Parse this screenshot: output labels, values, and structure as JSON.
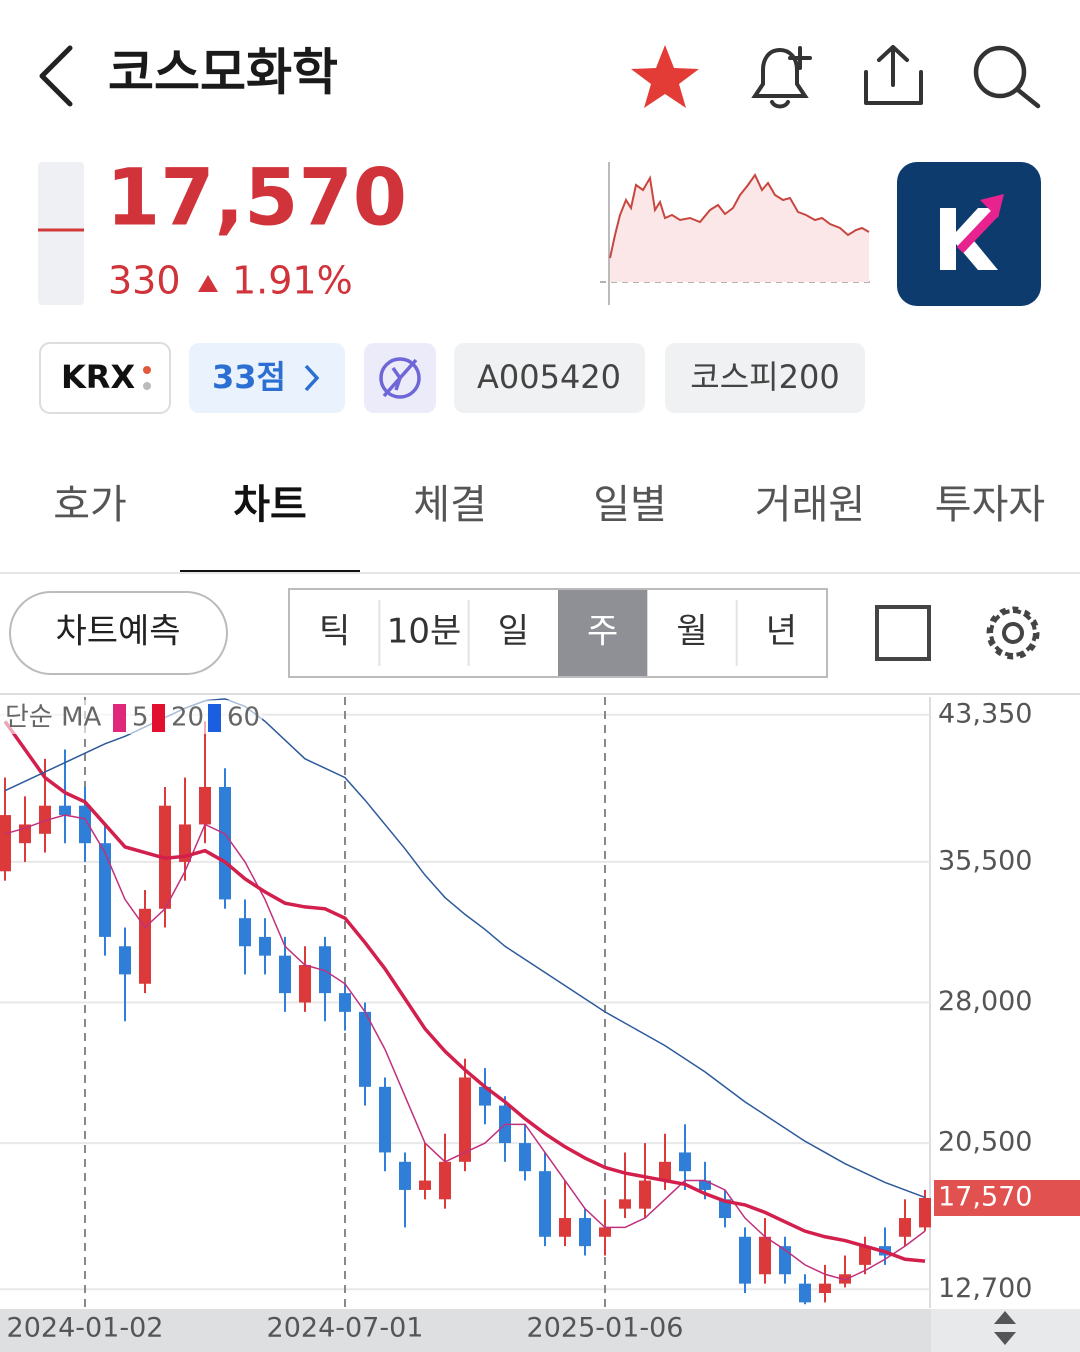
{
  "header": {
    "title": "코스모화학"
  },
  "price": {
    "current": "17,570",
    "change": "330",
    "change_pct": "1.91%"
  },
  "tags": [
    "KRX",
    "33점",
    "A005420",
    "코스피200"
  ],
  "tabs": [
    "호가",
    "차트",
    "체결",
    "일별",
    "거래원",
    "투자자"
  ],
  "active_tab_index": 1,
  "controls": {
    "predict": "차트예측",
    "periods": [
      "틱",
      "10분",
      "일",
      "주",
      "월",
      "년"
    ],
    "active_period_index": 3
  },
  "chart_data": {
    "type": "candlestick",
    "legend_title": "단순 MA",
    "up_color": "#dc3a3a",
    "down_color": "#2f7fd8",
    "categories": [
      null,
      null,
      null,
      null,
      "2024-01-02",
      null,
      null,
      null,
      null,
      null,
      null,
      null,
      null,
      null,
      null,
      null,
      null,
      "2024-07-01",
      null,
      null,
      null,
      null,
      null,
      null,
      null,
      null,
      null,
      null,
      null,
      null,
      "2025-01-06",
      null,
      null,
      null,
      null,
      null,
      null,
      null,
      null,
      null,
      null,
      null,
      null,
      null,
      null,
      null,
      null
    ],
    "open": [
      35000,
      36500,
      37000,
      38500,
      38500,
      36500,
      31000,
      29000,
      33000,
      35500,
      37500,
      39500,
      32500,
      31500,
      30500,
      28000,
      31000,
      28500,
      27500,
      23500,
      19500,
      18000,
      17500,
      19500,
      23500,
      22500,
      20500,
      19000,
      15500,
      16500,
      15500,
      17000,
      17000,
      18500,
      20000,
      18500,
      17500,
      15500,
      13500,
      15000,
      13000,
      12500,
      13000,
      14000,
      15000,
      15500,
      16000
    ],
    "high": [
      40000,
      39000,
      41000,
      41500,
      39500,
      37500,
      32000,
      34000,
      39500,
      40000,
      43000,
      40500,
      33500,
      32500,
      31500,
      31000,
      31500,
      29000,
      28000,
      24000,
      20000,
      20500,
      21000,
      25000,
      24500,
      23000,
      21500,
      20000,
      18500,
      17000,
      17500,
      20000,
      20500,
      21000,
      21500,
      19500,
      18000,
      16000,
      16500,
      15500,
      13500,
      14000,
      14500,
      15500,
      16000,
      17500,
      18000
    ],
    "low": [
      34500,
      35500,
      36000,
      36500,
      35500,
      30500,
      27000,
      28500,
      32000,
      34500,
      36500,
      33000,
      29500,
      29500,
      27500,
      27500,
      27000,
      26500,
      22500,
      19000,
      16000,
      17500,
      17000,
      19000,
      21500,
      19500,
      18500,
      15000,
      15000,
      14500,
      14500,
      16500,
      16500,
      18000,
      18000,
      17500,
      16000,
      12500,
      13000,
      13000,
      11900,
      12000,
      12800,
      13500,
      14000,
      15000,
      15800
    ],
    "close": [
      38000,
      37500,
      38500,
      38000,
      36500,
      31500,
      29500,
      33000,
      38500,
      37500,
      39500,
      33500,
      31000,
      30500,
      28500,
      30000,
      28500,
      27500,
      23500,
      20000,
      18000,
      18500,
      19500,
      24000,
      22500,
      20500,
      19000,
      15500,
      16500,
      15000,
      16000,
      17500,
      18500,
      19500,
      19000,
      18000,
      16500,
      13000,
      15500,
      13500,
      12000,
      13000,
      13500,
      15000,
      14500,
      16500,
      17570
    ],
    "series": [
      {
        "name": "5",
        "color": "#c0307c",
        "legend_color": "#e0287a",
        "values": [
          37000,
          37300,
          37700,
          38000,
          37800,
          36000,
          33500,
          32000,
          33000,
          35000,
          37500,
          37000,
          35500,
          33500,
          31000,
          30000,
          29700,
          29000,
          27500,
          25500,
          23000,
          20500,
          19500,
          20000,
          20500,
          21500,
          21500,
          20000,
          18500,
          17000,
          16000,
          16000,
          16500,
          17500,
          18500,
          18500,
          18000,
          16500,
          15500,
          14800,
          14000,
          13500,
          13200,
          13700,
          14300,
          15000,
          15800
        ]
      },
      {
        "name": "20",
        "color": "#d21f4c",
        "legend_color": "#e0102e",
        "values": [
          43000,
          41500,
          40000,
          39200,
          38700,
          37500,
          36300,
          36000,
          35700,
          35800,
          36100,
          35500,
          34600,
          33900,
          33300,
          33100,
          33000,
          32500,
          31200,
          29800,
          28200,
          26600,
          25400,
          24400,
          23500,
          22700,
          21800,
          21000,
          20300,
          19700,
          19200,
          18900,
          18700,
          18500,
          18300,
          17800,
          17400,
          17200,
          16800,
          16300,
          15800,
          15500,
          15300,
          15000,
          14700,
          14300,
          14200
        ]
      },
      {
        "name": "60",
        "color": "#2c5a9c",
        "legend_color": "#1b5fe0",
        "values": [
          39300,
          39800,
          40300,
          40800,
          41300,
          41800,
          42200,
          42700,
          43200,
          43700,
          44100,
          44200,
          43800,
          43000,
          42000,
          41000,
          40500,
          40000,
          38800,
          37500,
          36200,
          34800,
          33600,
          32700,
          31900,
          31000,
          30300,
          29600,
          28900,
          28200,
          27500,
          26900,
          26300,
          25700,
          25000,
          24300,
          23500,
          22700,
          22000,
          21300,
          20600,
          20000,
          19400,
          18900,
          18400,
          18000,
          17600
        ]
      }
    ],
    "ylim": [
      11700,
      44300
    ],
    "yticks": [
      {
        "value": 43350,
        "label": "43,350"
      },
      {
        "value": 35500,
        "label": "35,500"
      },
      {
        "value": 28000,
        "label": "28,000"
      },
      {
        "value": 20500,
        "label": "20,500"
      },
      {
        "value": 12700,
        "label": "12,700"
      }
    ],
    "price_marker": {
      "value": 17570,
      "label": "17,570"
    },
    "price_marker_color": "#e0514f",
    "grid": true
  }
}
